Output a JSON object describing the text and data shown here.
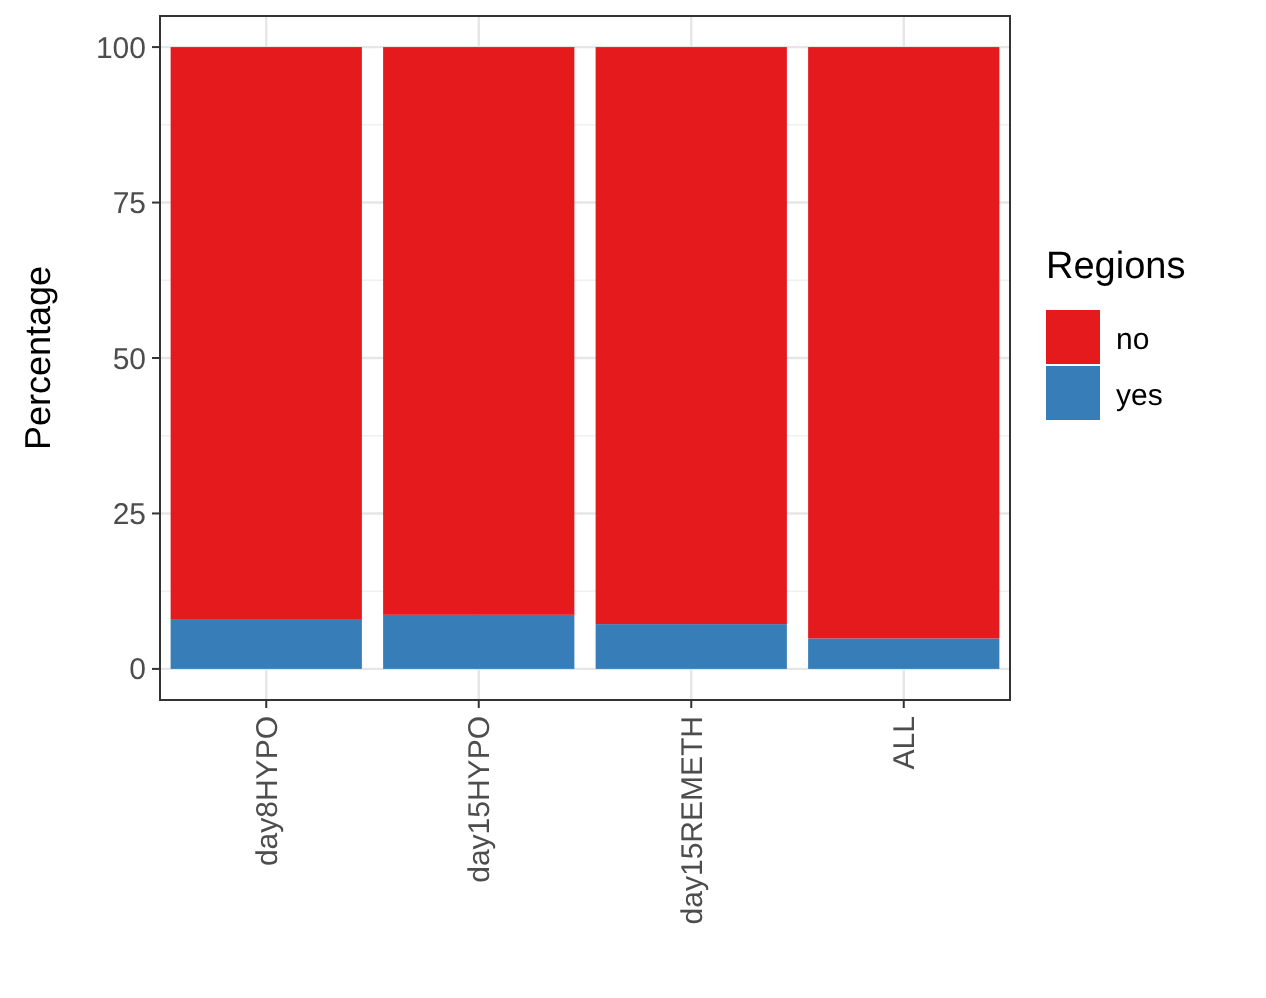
{
  "chart_data": {
    "type": "bar",
    "stacked": true,
    "ylabel": "Percentage",
    "legend_title": "Regions",
    "legend": "right",
    "grid": true,
    "categories": [
      "day8HYPO",
      "day15HYPO",
      "day15REMETH",
      "ALL"
    ],
    "ylim": [
      -5,
      105
    ],
    "yticks": [
      0,
      25,
      50,
      75,
      100
    ],
    "series": [
      {
        "name": "yes",
        "color": "#377eb8",
        "values": [
          7.9,
          8.7,
          7.2,
          4.9
        ]
      },
      {
        "name": "no",
        "color": "#e41a1c",
        "values": [
          92.1,
          91.3,
          92.8,
          95.1
        ]
      }
    ]
  }
}
